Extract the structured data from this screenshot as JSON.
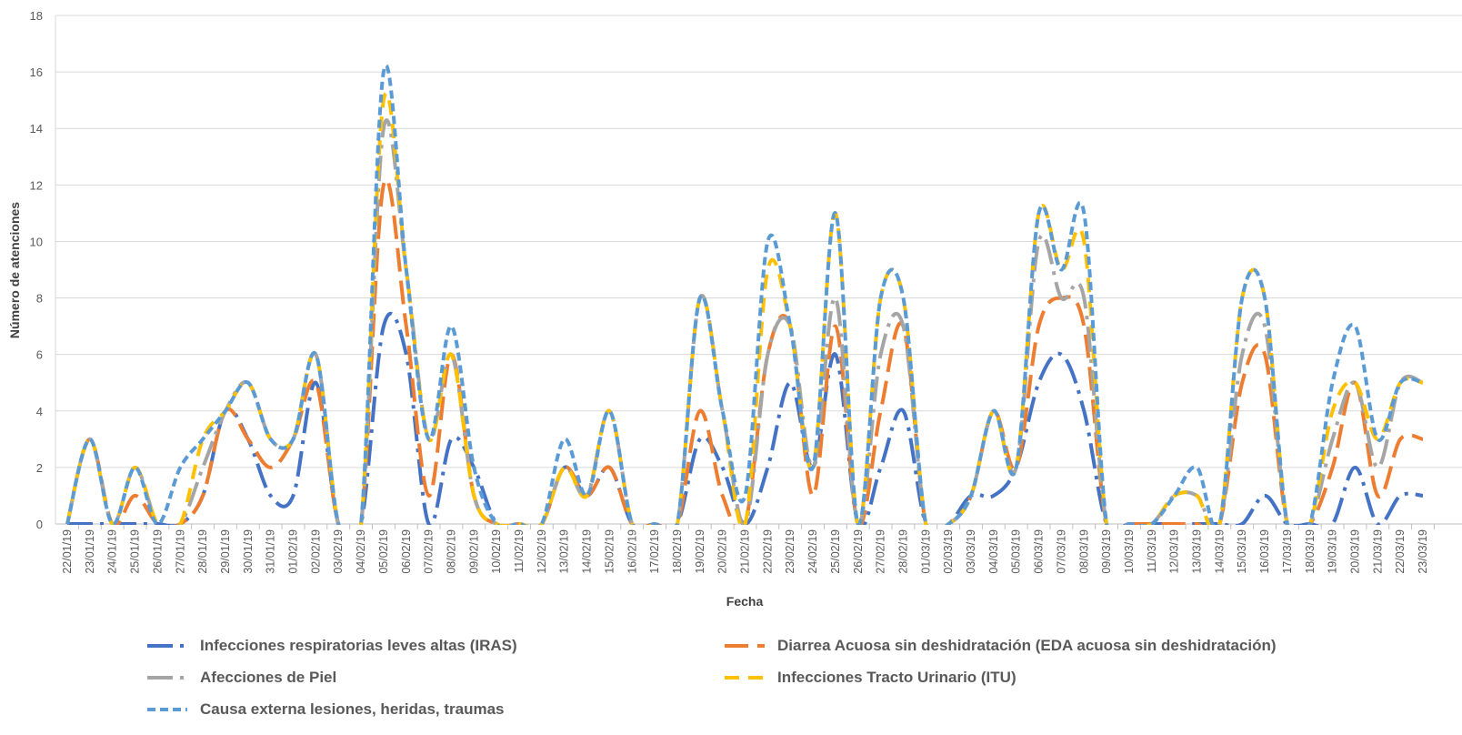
{
  "chart_data": {
    "type": "line",
    "title": "",
    "xlabel": "Fecha",
    "ylabel": "Número de atenciones",
    "ylim": [
      0,
      18
    ],
    "yticks": [
      0,
      2,
      4,
      6,
      8,
      10,
      12,
      14,
      16,
      18
    ],
    "grid": true,
    "legend_position": "bottom",
    "categories": [
      "22/01/19",
      "23/01/19",
      "24/01/19",
      "25/01/19",
      "26/01/19",
      "27/01/19",
      "28/01/19",
      "29/01/19",
      "30/01/19",
      "31/01/19",
      "01/02/19",
      "02/02/19",
      "03/02/19",
      "04/02/19",
      "05/02/19",
      "06/02/19",
      "07/02/19",
      "08/02/19",
      "09/02/19",
      "10/02/19",
      "11/02/19",
      "12/02/19",
      "13/02/19",
      "14/02/19",
      "15/02/19",
      "16/02/19",
      "17/02/19",
      "18/02/19",
      "19/02/19",
      "20/02/19",
      "21/02/19",
      "22/02/19",
      "23/02/19",
      "24/02/19",
      "25/02/19",
      "26/02/19",
      "27/02/19",
      "28/02/19",
      "01/03/19",
      "02/03/19",
      "03/03/19",
      "04/03/19",
      "05/03/19",
      "06/03/19",
      "07/03/19",
      "08/03/19",
      "09/03/19",
      "10/03/19",
      "11/03/19",
      "12/03/19",
      "13/03/19",
      "14/03/19",
      "15/03/19",
      "16/03/19",
      "17/03/19",
      "18/03/19",
      "19/03/19",
      "20/03/19",
      "21/03/19",
      "22/03/19",
      "23/03/19"
    ],
    "series": [
      {
        "name": "Infecciones respiratorias leves altas (IRAS)",
        "color": "#4472C4",
        "dash": "long-dash-dot",
        "values": [
          0,
          0,
          0,
          0,
          0,
          0,
          1,
          4,
          3,
          1,
          1,
          5,
          0,
          0,
          7,
          6,
          0,
          3,
          2,
          0,
          0,
          0,
          2,
          1,
          2,
          0,
          0,
          0,
          3,
          2,
          0,
          2,
          5,
          2,
          6,
          0,
          2,
          4,
          0,
          0,
          1,
          1,
          2,
          5,
          6,
          4,
          0,
          0,
          0,
          0,
          0,
          0,
          0,
          1,
          0,
          0,
          0,
          2,
          0,
          1,
          1
        ]
      },
      {
        "name": "Diarrea Acuosa sin deshidratación (EDA acuosa sin deshidratación)",
        "color": "#ED7D31",
        "dash": "long-dash",
        "values": [
          0,
          3,
          0,
          1,
          0,
          0,
          1,
          4,
          3,
          2,
          3,
          5,
          0,
          0,
          12,
          7,
          1,
          6,
          1,
          0,
          0,
          0,
          2,
          1,
          2,
          0,
          0,
          0,
          4,
          1,
          0,
          6,
          7,
          1,
          7,
          0,
          4,
          7,
          0,
          0,
          1,
          4,
          2,
          7,
          8,
          7,
          0,
          0,
          0,
          0,
          0,
          0,
          5,
          6,
          0,
          0,
          2,
          5,
          1,
          3,
          3
        ]
      },
      {
        "name": "Afecciones de Piel",
        "color": "#A5A5A5",
        "dash": "long-dash-dot",
        "values": [
          0,
          3,
          0,
          2,
          0,
          0,
          2,
          4,
          5,
          3,
          3,
          6,
          0,
          0,
          14,
          9,
          3,
          6,
          1,
          0,
          0,
          0,
          2,
          1,
          4,
          0,
          0,
          0,
          8,
          4,
          0,
          6,
          7,
          2,
          8,
          0,
          6,
          7,
          0,
          0,
          1,
          4,
          2,
          10,
          8,
          8,
          0,
          0,
          0,
          1,
          1,
          0,
          6,
          7,
          0,
          0,
          3,
          5,
          2,
          5,
          5
        ]
      },
      {
        "name": "Infecciones Tracto Urinario (ITU)",
        "color": "#FFC000",
        "dash": "dash",
        "values": [
          0,
          3,
          0,
          2,
          0,
          0,
          3,
          4,
          5,
          3,
          3,
          6,
          0,
          0,
          15,
          9,
          3,
          6,
          1,
          0,
          0,
          0,
          2,
          1,
          4,
          0,
          0,
          0,
          8,
          4,
          0,
          9,
          7,
          2,
          11,
          0,
          8,
          8,
          0,
          0,
          1,
          4,
          2,
          11,
          9,
          10,
          0,
          0,
          0,
          1,
          1,
          0,
          8,
          8,
          0,
          0,
          4,
          5,
          3,
          5,
          5
        ]
      },
      {
        "name": "Causa externa lesiones, heridas, traumas",
        "color": "#5B9BD5",
        "dash": "short-dash",
        "values": [
          0,
          3,
          0,
          2,
          0,
          2,
          3,
          4,
          5,
          3,
          3,
          6,
          0,
          0,
          16,
          9,
          3,
          7,
          2,
          0,
          0,
          0,
          3,
          1,
          4,
          0,
          0,
          0,
          8,
          4,
          1,
          10,
          7,
          2,
          11,
          0,
          8,
          8,
          0,
          0,
          1,
          4,
          2,
          11,
          9,
          11,
          0,
          0,
          0,
          1,
          2,
          0,
          8,
          8,
          0,
          0,
          5,
          7,
          3,
          5,
          5
        ]
      }
    ]
  }
}
